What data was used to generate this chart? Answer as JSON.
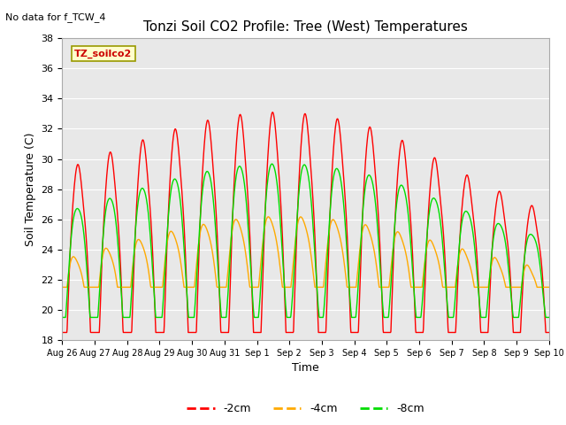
{
  "title": "Tonzi Soil CO2 Profile: Tree (West) Temperatures",
  "no_data_label": "No data for f_TCW_4",
  "xlabel": "Time",
  "ylabel": "Soil Temperature (C)",
  "ylim": [
    18,
    38
  ],
  "yticks": [
    18,
    20,
    22,
    24,
    26,
    28,
    30,
    32,
    34,
    36,
    38
  ],
  "legend_label": "TZ_soilco2",
  "series": [
    {
      "label": "-2cm",
      "color": "#ff0000"
    },
    {
      "label": "-4cm",
      "color": "#ffaa00"
    },
    {
      "label": "-8cm",
      "color": "#00dd00"
    }
  ],
  "background_color": "#e8e8e8",
  "line_width": 1.0,
  "tick_labels": [
    "Aug 26",
    "Aug 27",
    "Aug 28",
    "Aug 29",
    "Aug 30",
    "Aug 31",
    "Sep 1",
    "Sep 2",
    "Sep 3",
    "Sep 4",
    "Sep 5",
    "Sep 6",
    "Sep 7",
    "Sep 8",
    "Sep 9",
    "Sep 10"
  ]
}
